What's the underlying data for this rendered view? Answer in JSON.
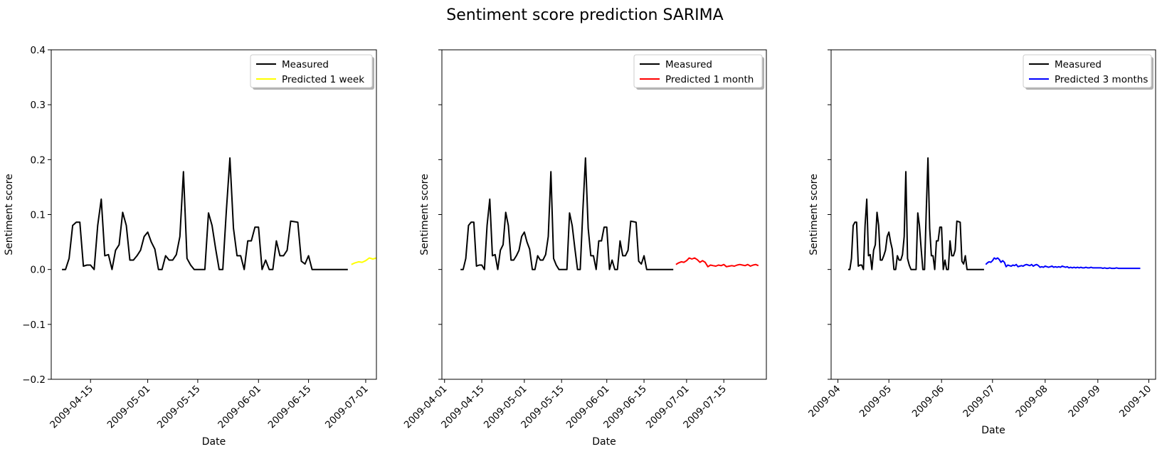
{
  "figure": {
    "title": "Sentiment score prediction SARIMA"
  },
  "chart_data": [
    {
      "type": "line",
      "xlabel": "Date",
      "ylabel": "Sentiment score",
      "xlim": [
        "2009-04-04",
        "2009-07-04"
      ],
      "ylim": [
        -0.2,
        0.4
      ],
      "y_ticks": [
        "−0.2",
        "−0.1",
        "0.0",
        "0.1",
        "0.2",
        "0.3",
        "0.4"
      ],
      "x_ticks": [
        {
          "date": "2009-04-15",
          "label": "2009-04-15"
        },
        {
          "date": "2009-05-01",
          "label": "2009-05-01"
        },
        {
          "date": "2009-05-15",
          "label": "2009-05-15"
        },
        {
          "date": "2009-06-01",
          "label": "2009-06-01"
        },
        {
          "date": "2009-06-15",
          "label": "2009-06-15"
        },
        {
          "date": "2009-07-01",
          "label": "2009-07-01"
        }
      ],
      "legend": {
        "position": "top-right"
      },
      "series": [
        {
          "name": "Measured",
          "ref": "measured",
          "color": "#000000"
        },
        {
          "name": "Predicted 1 week",
          "ref": "week",
          "color": "#ffff00"
        }
      ]
    },
    {
      "type": "line",
      "xlabel": "Date",
      "ylabel": "Sentiment score",
      "xlim": [
        "2009-03-31",
        "2009-07-31"
      ],
      "ylim": [
        -0.2,
        0.4
      ],
      "y_ticks": [],
      "x_ticks": [
        {
          "date": "2009-04-01",
          "label": "2009-04-01"
        },
        {
          "date": "2009-04-15",
          "label": "2009-04-15"
        },
        {
          "date": "2009-05-01",
          "label": "2009-05-01"
        },
        {
          "date": "2009-05-15",
          "label": "2009-05-15"
        },
        {
          "date": "2009-06-01",
          "label": "2009-06-01"
        },
        {
          "date": "2009-06-15",
          "label": "2009-06-15"
        },
        {
          "date": "2009-07-01",
          "label": "2009-07-01"
        },
        {
          "date": "2009-07-15",
          "label": "2009-07-15"
        }
      ],
      "legend": {
        "position": "top-right"
      },
      "series": [
        {
          "name": "Measured",
          "ref": "measured",
          "color": "#000000"
        },
        {
          "name": "Predicted 1 month",
          "ref": "month",
          "color": "#ff0000"
        }
      ]
    },
    {
      "type": "line",
      "xlabel": "Date",
      "ylabel": "Sentiment score",
      "xlim": [
        "2009-03-28",
        "2009-10-05"
      ],
      "ylim": [
        -0.2,
        0.4
      ],
      "y_ticks": [],
      "x_ticks": [
        {
          "date": "2009-04-01",
          "label": "2009-04"
        },
        {
          "date": "2009-05-01",
          "label": "2009-05"
        },
        {
          "date": "2009-06-01",
          "label": "2009-06"
        },
        {
          "date": "2009-07-01",
          "label": "2009-07"
        },
        {
          "date": "2009-08-01",
          "label": "2009-08"
        },
        {
          "date": "2009-09-01",
          "label": "2009-09"
        },
        {
          "date": "2009-10-01",
          "label": "2009-10"
        }
      ],
      "legend": {
        "position": "top-right"
      },
      "series": [
        {
          "name": "Measured",
          "ref": "measured",
          "color": "#000000"
        },
        {
          "name": "Predicted 3 months",
          "ref": "quarter",
          "color": "#0000ff"
        }
      ]
    }
  ],
  "series_data": {
    "measured": {
      "start": "2009-04-07",
      "step_days": 1,
      "values": [
        0.0,
        0.0,
        0.02,
        0.08,
        0.086,
        0.086,
        0.006,
        0.008,
        0.008,
        0.0,
        0.08,
        0.128,
        0.025,
        0.027,
        0.0,
        0.035,
        0.045,
        0.104,
        0.08,
        0.017,
        0.017,
        0.025,
        0.035,
        0.06,
        0.068,
        0.05,
        0.037,
        0.0,
        0.0,
        0.025,
        0.017,
        0.017,
        0.027,
        0.06,
        0.178,
        0.02,
        0.008,
        0.0,
        0.0,
        0.0,
        0.0,
        0.103,
        0.08,
        0.038,
        0.0,
        0.0,
        0.107,
        0.203,
        0.075,
        0.025,
        0.025,
        0.0,
        0.052,
        0.052,
        0.077,
        0.077,
        0.0,
        0.017,
        0.0,
        0.0,
        0.052,
        0.025,
        0.025,
        0.035,
        0.088,
        0.087,
        0.086,
        0.015,
        0.01,
        0.025,
        0.0,
        0.0,
        0.0,
        0.0,
        0.0,
        0.0,
        0.0,
        0.0,
        0.0,
        0.0,
        0.0
      ]
    },
    "week": {
      "start": "2009-06-27",
      "step_days": 1,
      "values": [
        0.009,
        0.012,
        0.014,
        0.013,
        0.016,
        0.021,
        0.019,
        0.021
      ]
    },
    "month": {
      "start": "2009-06-27",
      "step_days": 1,
      "values": [
        0.009,
        0.012,
        0.014,
        0.013,
        0.016,
        0.021,
        0.019,
        0.021,
        0.018,
        0.013,
        0.016,
        0.013,
        0.005,
        0.008,
        0.007,
        0.006,
        0.008,
        0.007,
        0.009,
        0.005,
        0.006,
        0.007,
        0.006,
        0.008,
        0.009,
        0.008,
        0.007,
        0.009,
        0.006,
        0.008,
        0.009,
        0.007
      ]
    },
    "quarter": {
      "start": "2009-06-27",
      "step_days": 1,
      "values": [
        0.009,
        0.012,
        0.014,
        0.013,
        0.016,
        0.021,
        0.019,
        0.021,
        0.018,
        0.013,
        0.016,
        0.013,
        0.005,
        0.008,
        0.007,
        0.006,
        0.008,
        0.007,
        0.009,
        0.005,
        0.006,
        0.007,
        0.006,
        0.008,
        0.009,
        0.008,
        0.007,
        0.009,
        0.006,
        0.008,
        0.009,
        0.007,
        0.004,
        0.005,
        0.004,
        0.006,
        0.005,
        0.004,
        0.005,
        0.006,
        0.004,
        0.005,
        0.004,
        0.005,
        0.004,
        0.006,
        0.005,
        0.004,
        0.005,
        0.003,
        0.004,
        0.003,
        0.004,
        0.003,
        0.004,
        0.003,
        0.004,
        0.003,
        0.003,
        0.004,
        0.003,
        0.003,
        0.004,
        0.003,
        0.003,
        0.003,
        0.003,
        0.003,
        0.003,
        0.002,
        0.003,
        0.002,
        0.002,
        0.003,
        0.002,
        0.002,
        0.002,
        0.003,
        0.002,
        0.002,
        0.002,
        0.002,
        0.002,
        0.002,
        0.002,
        0.002,
        0.002,
        0.002,
        0.002,
        0.002,
        0.002,
        0.002
      ]
    }
  }
}
